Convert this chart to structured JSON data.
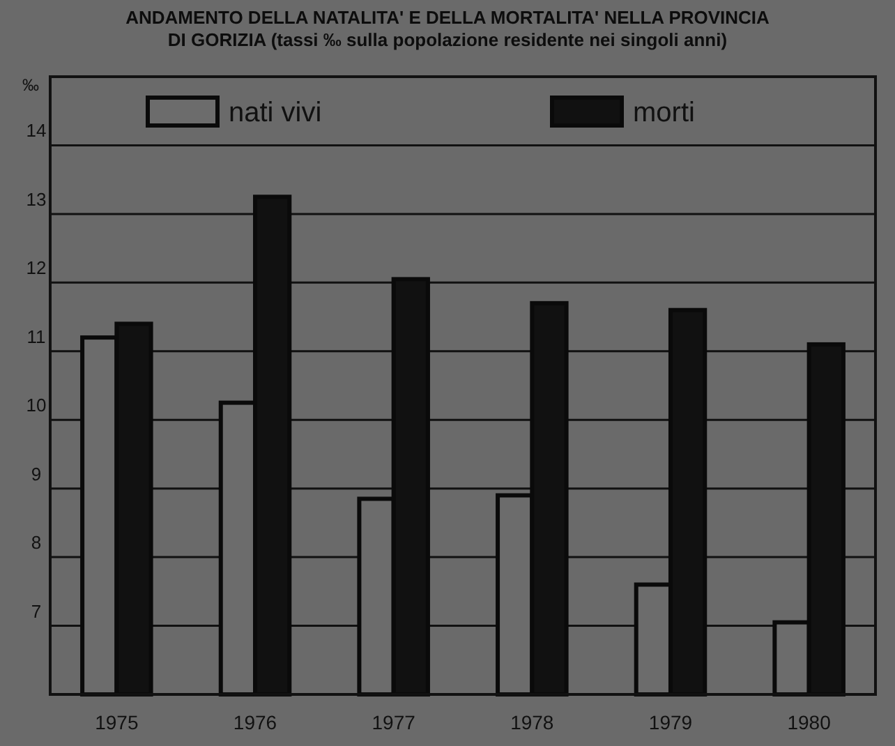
{
  "chart_data": {
    "type": "bar",
    "title": "ANDAMENTO DELLA NATALITA' E DELLA MORTALITA' NELLA PROVINCIA\nDI GORIZIA (tassi ‰ sulla popolazione residente nei singoli anni)",
    "ylabel": "‰",
    "categories": [
      "1975",
      "1976",
      "1977",
      "1978",
      "1979",
      "1980"
    ],
    "series": [
      {
        "name": "nati vivi",
        "color": "#6c6c6c",
        "values": [
          11.2,
          10.25,
          8.85,
          8.9,
          7.6,
          7.05
        ]
      },
      {
        "name": "morti",
        "color": "#111111",
        "values": [
          11.4,
          13.25,
          12.05,
          11.7,
          11.6,
          11.1
        ]
      }
    ],
    "ylim": [
      6,
      15
    ],
    "yticks": [
      7,
      8,
      9,
      10,
      11,
      12,
      13,
      14
    ],
    "grid": "y",
    "legend": "top"
  }
}
